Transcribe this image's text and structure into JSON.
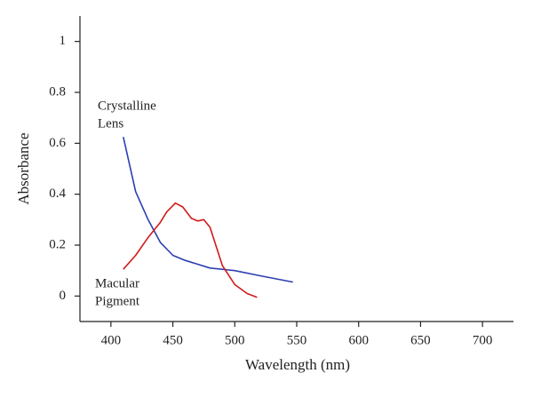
{
  "chart_data": {
    "type": "line",
    "x_label": "Wavelength (nm)",
    "y_label": "Absorbance",
    "xlim": [
      375,
      725
    ],
    "ylim": [
      -0.1,
      1.1
    ],
    "xticks": [
      400,
      450,
      500,
      550,
      600,
      650,
      700
    ],
    "yticks": [
      0,
      0.2,
      0.4,
      0.6,
      0.8,
      1
    ],
    "grid": false,
    "series": [
      {
        "color": "#2c3fb0",
        "x": [
          410,
          420,
          430,
          440,
          450,
          460,
          470,
          480,
          500,
          520,
          547
        ],
        "values": [
          0.625,
          0.41,
          0.3,
          0.21,
          0.16,
          0.14,
          0.125,
          0.11,
          0.1,
          0.08,
          0.055
        ]
      },
      {
        "color": "#d11a1a",
        "x": [
          410,
          420,
          430,
          440,
          445,
          452,
          458,
          465,
          470,
          475,
          480,
          490,
          500,
          510,
          518
        ],
        "values": [
          0.105,
          0.16,
          0.23,
          0.29,
          0.33,
          0.365,
          0.35,
          0.305,
          0.295,
          0.3,
          0.27,
          0.12,
          0.045,
          0.01,
          -0.005
        ]
      }
    ],
    "annotations": [
      {
        "lines": [
          "Crystalline",
          "Lens"
        ],
        "color": "#2c3fb0"
      },
      {
        "lines": [
          "Macular",
          "Pigment"
        ],
        "color": "#b01818"
      }
    ]
  }
}
